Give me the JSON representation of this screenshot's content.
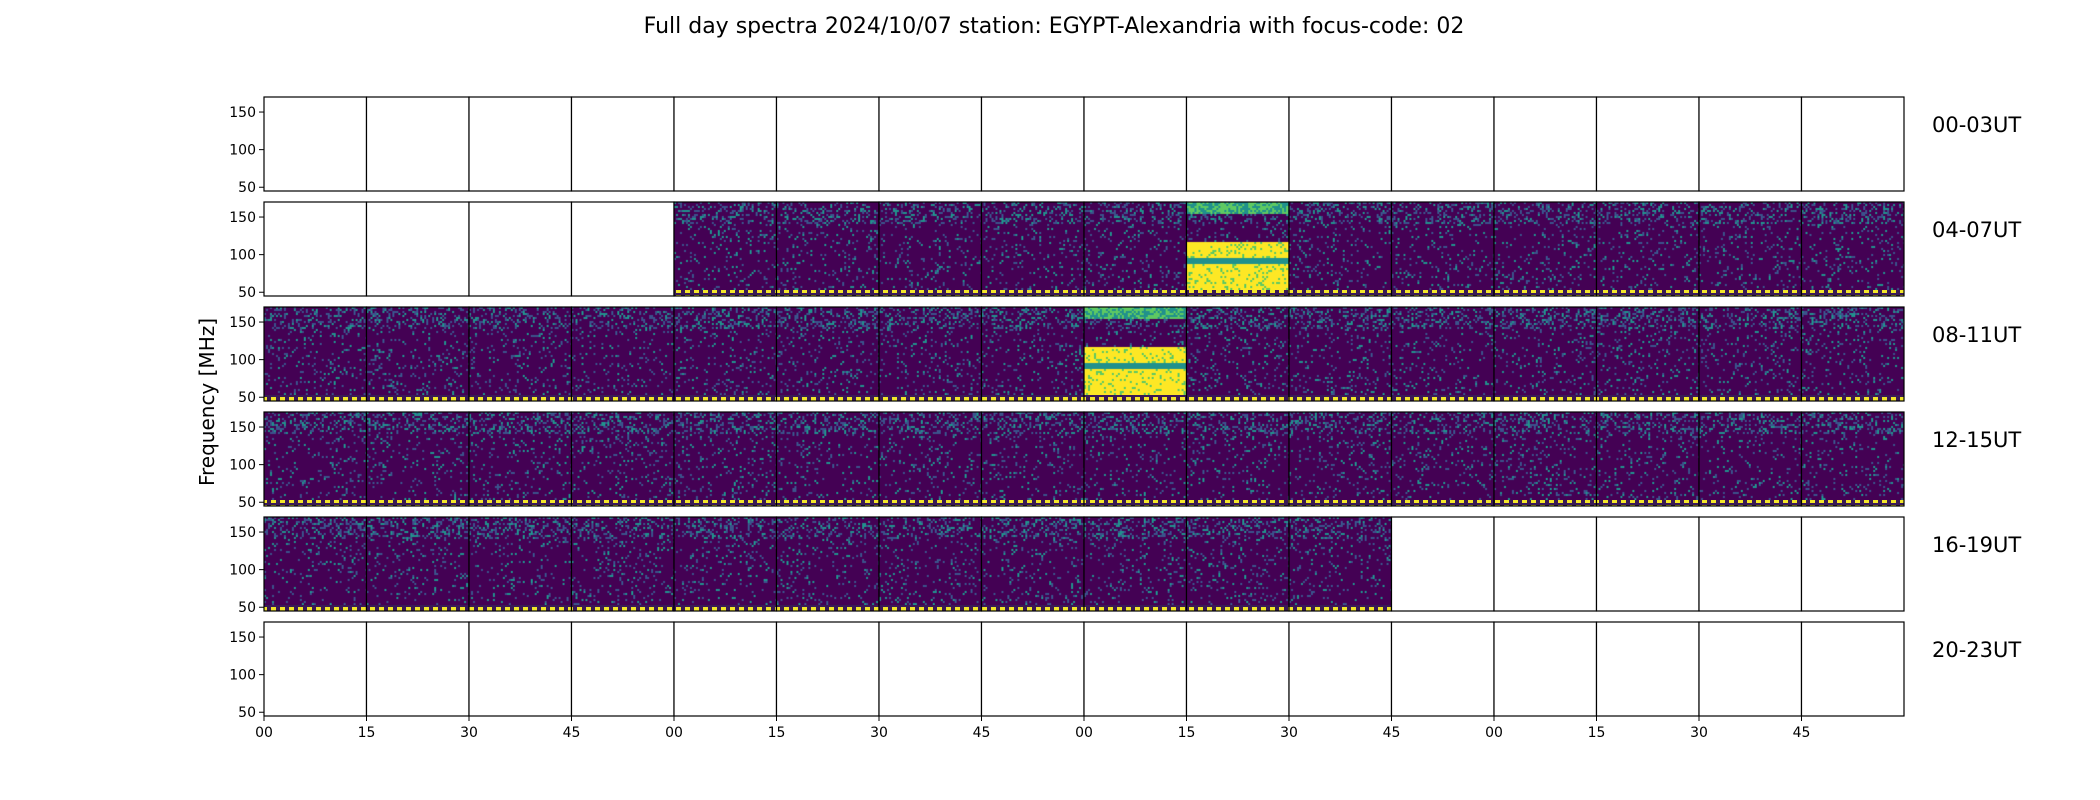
{
  "chart_data": {
    "type": "heatmap",
    "title": "Full day spectra 2024/10/07 station: EGYPT-Alexandria with focus-code: 02",
    "ylabel": "Frequency [MHz]",
    "ylim": [
      45,
      170
    ],
    "y_ticks": [
      "50",
      "100",
      "150"
    ],
    "x_tick_labels": [
      "00",
      "15",
      "30",
      "45",
      "00",
      "15",
      "30",
      "45",
      "00",
      "15",
      "30",
      "45",
      "00",
      "15",
      "30",
      "45"
    ],
    "row_labels": [
      "00-03UT",
      "04-07UT",
      "08-11UT",
      "12-15UT",
      "16-19UT",
      "20-23UT"
    ],
    "colormap": [
      "#440154",
      "#3b528b",
      "#21918c",
      "#5ec962",
      "#fde725"
    ],
    "panel_status": [
      [
        0,
        0,
        0,
        0,
        0,
        0,
        0,
        0,
        0,
        0,
        0,
        0,
        0,
        0,
        0,
        0
      ],
      [
        0,
        0,
        0,
        0,
        1,
        1,
        1,
        1,
        1,
        2,
        1,
        1,
        1,
        1,
        1,
        1
      ],
      [
        1,
        1,
        1,
        1,
        1,
        1,
        1,
        1,
        2,
        1,
        1,
        1,
        1,
        1,
        1,
        1
      ],
      [
        1,
        1,
        1,
        1,
        1,
        1,
        1,
        1,
        1,
        1,
        1,
        1,
        1,
        1,
        1,
        1
      ],
      [
        1,
        1,
        1,
        1,
        1,
        1,
        1,
        1,
        1,
        1,
        1,
        0,
        0,
        0,
        0,
        0
      ],
      [
        0,
        0,
        0,
        0,
        0,
        0,
        0,
        0,
        0,
        0,
        0,
        0,
        0,
        0,
        0,
        0
      ]
    ]
  }
}
